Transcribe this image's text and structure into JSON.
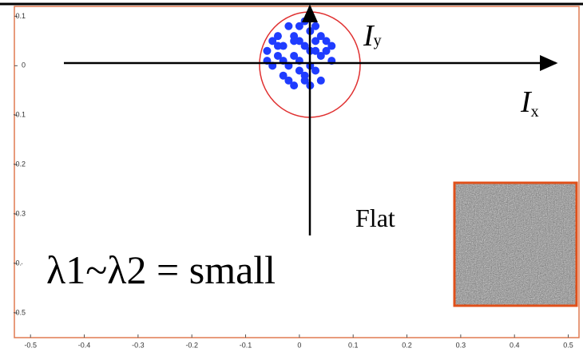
{
  "chart_data": {
    "type": "scatter",
    "x": [
      0.0,
      0.02,
      -0.03,
      0.04,
      -0.05,
      0.01,
      -0.02,
      0.03,
      0.05,
      -0.04,
      0.0,
      0.02,
      -0.01,
      0.06,
      -0.06,
      0.03,
      -0.02,
      0.01,
      -0.03,
      0.04,
      -0.01,
      0.0,
      0.02,
      -0.04,
      0.05,
      -0.05,
      0.01,
      -0.01,
      0.03,
      -0.02,
      0.0,
      0.04,
      -0.03,
      0.02,
      -0.06,
      0.06,
      0.01,
      -0.04,
      0.03,
      -0.01
    ],
    "values": [
      0.05,
      0.07,
      0.04,
      0.02,
      0.0,
      -0.02,
      -0.03,
      -0.01,
      0.05,
      0.06,
      0.08,
      0.0,
      0.02,
      0.01,
      0.03,
      0.08,
      0.08,
      0.04,
      0.01,
      -0.03,
      -0.04,
      0.01,
      0.03,
      0.02,
      0.03,
      0.05,
      0.09,
      0.06,
      0.05,
      0.0,
      -0.01,
      0.06,
      -0.02,
      -0.04,
      0.01,
      0.04,
      -0.03,
      0.04,
      0.03,
      0.05
    ],
    "color": "#1f3cff",
    "xlim": [
      -0.53,
      0.52
    ],
    "ylim": [
      -0.55,
      0.12
    ],
    "xticks": [
      -0.5,
      -0.4,
      -0.3,
      -0.2,
      -0.1,
      0,
      0.1,
      0.2,
      0.3,
      0.4,
      0.5
    ],
    "yticks": [
      0.1,
      0,
      -0.1,
      -0.2,
      -0.3,
      -0.4,
      -0.5
    ],
    "annotations": {
      "iy": "I",
      "iy_sub": "y",
      "ix": "I",
      "ix_sub": "x",
      "flat": "Flat",
      "caption": "λ1~λ2 = small"
    }
  }
}
